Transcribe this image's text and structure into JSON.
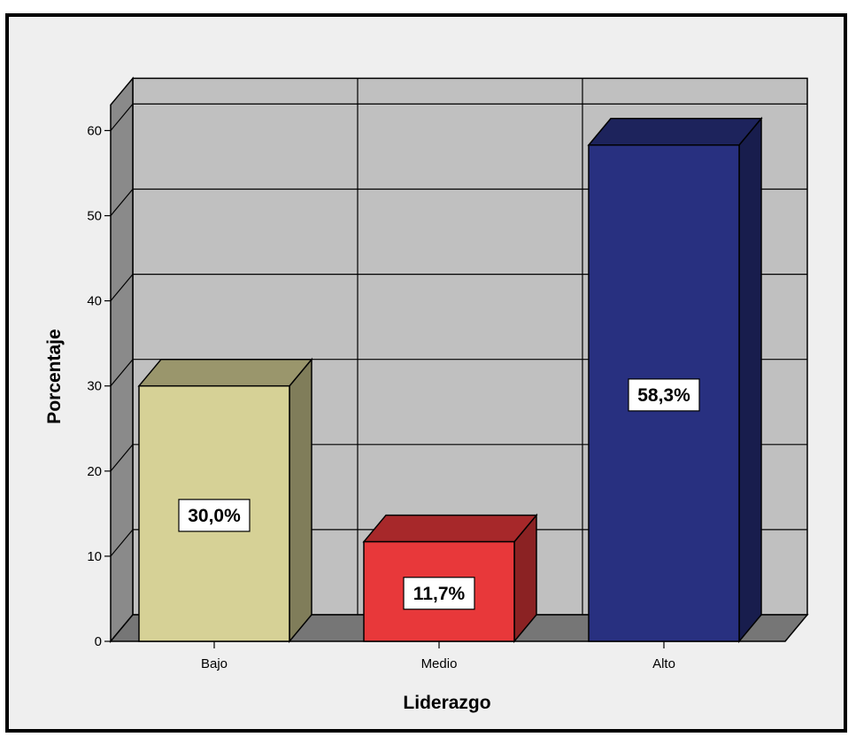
{
  "chart_data": {
    "type": "bar",
    "categories": [
      "Bajo",
      "Medio",
      "Alto"
    ],
    "values": [
      30.0,
      11.7,
      58.3
    ],
    "data_labels": [
      "30,0%",
      "11,7%",
      "58,3%"
    ],
    "title": "",
    "xlabel": "Liderazgo",
    "ylabel": "Porcentaje",
    "ylim": [
      0,
      60
    ],
    "yticks": [
      "0",
      "10",
      "20",
      "30",
      "40",
      "50",
      "60"
    ],
    "grid": true,
    "style": "3d",
    "colors": [
      "#d6d196",
      "#e8383a",
      "#283080"
    ],
    "wall_color": "#c0c0c0",
    "background": "#efefef"
  }
}
